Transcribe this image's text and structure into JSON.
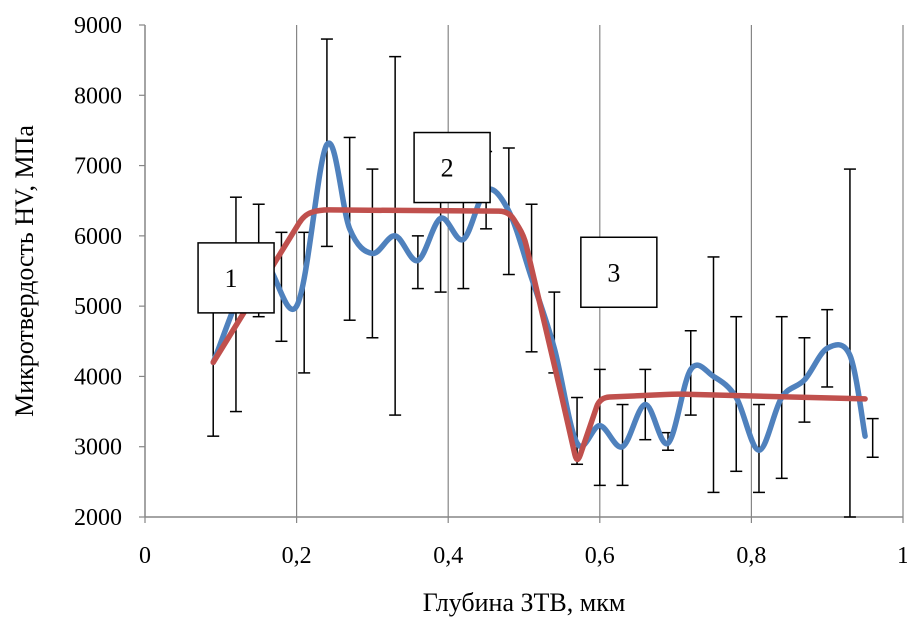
{
  "chart_data": {
    "type": "line",
    "xlabel": "Глубина ЗТВ, мкм",
    "ylabel": "Микротвердость HV, МПа",
    "xlim": [
      0,
      1
    ],
    "ylim": [
      2000,
      9000
    ],
    "x_ticks": [
      "0",
      "0,2",
      "0,4",
      "0,6",
      "0,8",
      "1"
    ],
    "x_tick_values": [
      0,
      0.2,
      0.4,
      0.6,
      0.8,
      1.0
    ],
    "y_ticks": [
      "2000",
      "3000",
      "4000",
      "5000",
      "6000",
      "7000",
      "8000",
      "9000"
    ],
    "y_tick_values": [
      2000,
      3000,
      4000,
      5000,
      6000,
      7000,
      8000,
      9000
    ],
    "grid": "vertical",
    "legend": "none",
    "series": [
      {
        "color": "#4f81bd",
        "smooth": true,
        "points": [
          {
            "x": 0.09,
            "y": 4200
          },
          {
            "x": 0.15,
            "y": 5650
          },
          {
            "x": 0.2,
            "y": 5000
          },
          {
            "x": 0.24,
            "y": 7300
          },
          {
            "x": 0.27,
            "y": 6100
          },
          {
            "x": 0.3,
            "y": 5750
          },
          {
            "x": 0.33,
            "y": 6000
          },
          {
            "x": 0.36,
            "y": 5650
          },
          {
            "x": 0.39,
            "y": 6250
          },
          {
            "x": 0.42,
            "y": 5950
          },
          {
            "x": 0.45,
            "y": 6650
          },
          {
            "x": 0.48,
            "y": 6350
          },
          {
            "x": 0.51,
            "y": 5400
          },
          {
            "x": 0.54,
            "y": 4400
          },
          {
            "x": 0.57,
            "y": 3050
          },
          {
            "x": 0.6,
            "y": 3300
          },
          {
            "x": 0.63,
            "y": 3000
          },
          {
            "x": 0.66,
            "y": 3600
          },
          {
            "x": 0.69,
            "y": 3050
          },
          {
            "x": 0.72,
            "y": 4100
          },
          {
            "x": 0.75,
            "y": 4000
          },
          {
            "x": 0.78,
            "y": 3700
          },
          {
            "x": 0.81,
            "y": 2950
          },
          {
            "x": 0.84,
            "y": 3700
          },
          {
            "x": 0.87,
            "y": 3950
          },
          {
            "x": 0.9,
            "y": 4400
          },
          {
            "x": 0.93,
            "y": 4300
          },
          {
            "x": 0.95,
            "y": 3150
          }
        ]
      },
      {
        "color": "#c0504d",
        "smooth": false,
        "points": [
          {
            "x": 0.09,
            "y": 4200
          },
          {
            "x": 0.21,
            "y": 6300
          },
          {
            "x": 0.23,
            "y": 6370
          },
          {
            "x": 0.48,
            "y": 6350
          },
          {
            "x": 0.5,
            "y": 6000
          },
          {
            "x": 0.55,
            "y": 3700
          },
          {
            "x": 0.57,
            "y": 2750
          },
          {
            "x": 0.6,
            "y": 3700
          },
          {
            "x": 0.7,
            "y": 3750
          },
          {
            "x": 0.95,
            "y": 3680
          }
        ]
      }
    ],
    "error_bars": [
      {
        "x": 0.09,
        "low": 3150,
        "high": 5300
      },
      {
        "x": 0.12,
        "low": 3500,
        "high": 6550
      },
      {
        "x": 0.15,
        "low": 4850,
        "high": 6450
      },
      {
        "x": 0.18,
        "low": 4500,
        "high": 6050
      },
      {
        "x": 0.21,
        "low": 4050,
        "high": 6050
      },
      {
        "x": 0.24,
        "low": 5850,
        "high": 8800
      },
      {
        "x": 0.27,
        "low": 4800,
        "high": 7400
      },
      {
        "x": 0.3,
        "low": 4550,
        "high": 6950
      },
      {
        "x": 0.33,
        "low": 3450,
        "high": 8550
      },
      {
        "x": 0.36,
        "low": 5250,
        "high": 6000
      },
      {
        "x": 0.39,
        "low": 5200,
        "high": 7000
      },
      {
        "x": 0.42,
        "low": 5250,
        "high": 6700
      },
      {
        "x": 0.45,
        "low": 6100,
        "high": 7200
      },
      {
        "x": 0.48,
        "low": 5450,
        "high": 7250
      },
      {
        "x": 0.51,
        "low": 4350,
        "high": 6450
      },
      {
        "x": 0.54,
        "low": 4050,
        "high": 5200
      },
      {
        "x": 0.57,
        "low": 2750,
        "high": 3700
      },
      {
        "x": 0.6,
        "low": 2450,
        "high": 4100
      },
      {
        "x": 0.63,
        "low": 2450,
        "high": 3600
      },
      {
        "x": 0.66,
        "low": 3100,
        "high": 4100
      },
      {
        "x": 0.69,
        "low": 2950,
        "high": 3200
      },
      {
        "x": 0.72,
        "low": 3450,
        "high": 4650
      },
      {
        "x": 0.75,
        "low": 2350,
        "high": 5700
      },
      {
        "x": 0.78,
        "low": 2650,
        "high": 4850
      },
      {
        "x": 0.81,
        "low": 2350,
        "high": 3600
      },
      {
        "x": 0.84,
        "low": 2550,
        "high": 4850
      },
      {
        "x": 0.87,
        "low": 3350,
        "high": 4550
      },
      {
        "x": 0.9,
        "low": 3850,
        "high": 4950
      },
      {
        "x": 0.93,
        "low": 2000,
        "high": 6950
      },
      {
        "x": 0.96,
        "low": 2850,
        "high": 3400
      }
    ],
    "annotations": [
      {
        "text": "1",
        "x": 0.07,
        "y": 5900
      },
      {
        "text": "2",
        "x": 0.355,
        "y": 7470
      },
      {
        "text": "3",
        "x": 0.575,
        "y": 5980
      }
    ]
  }
}
